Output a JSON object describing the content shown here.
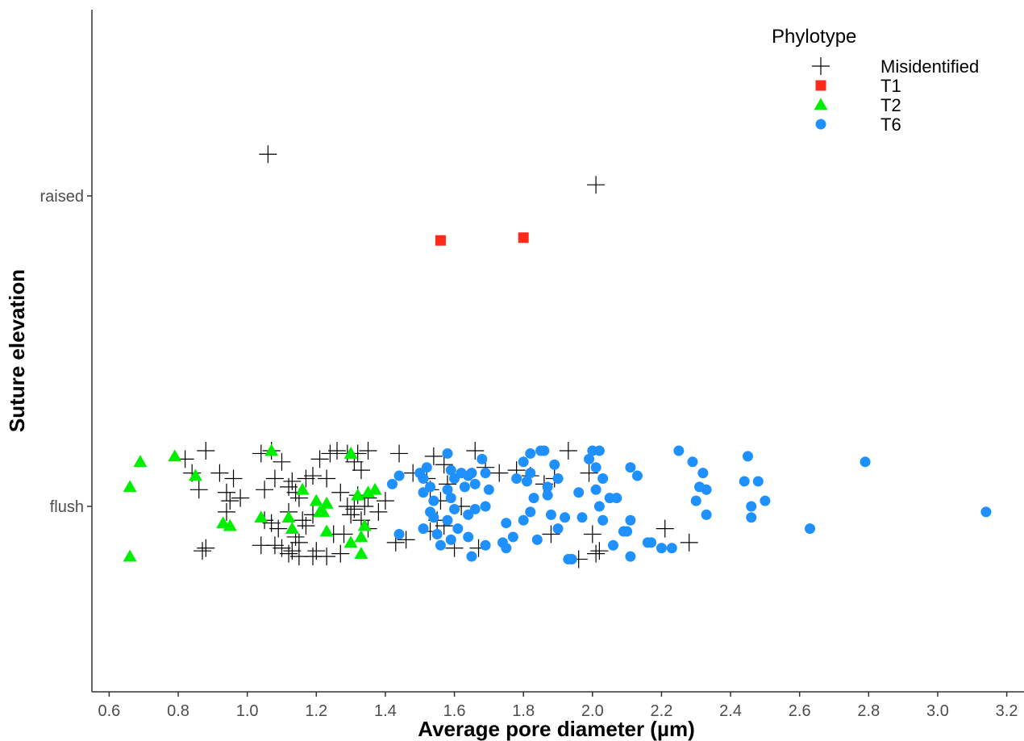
{
  "chart_data": {
    "type": "scatter",
    "xlabel": "Average pore diameter (µm)",
    "ylabel": "Suture elevation",
    "xlim": [
      0.55,
      3.25
    ],
    "x_ticks": [
      "0.6",
      "0.8",
      "1.0",
      "1.2",
      "1.4",
      "1.6",
      "1.8",
      "2.0",
      "2.2",
      "2.4",
      "2.6",
      "2.8",
      "3.0",
      "3.2"
    ],
    "y_categories": [
      "flush",
      "raised"
    ],
    "grid": false,
    "legend": {
      "title": "Phylotype",
      "position": "top-right"
    },
    "series": [
      {
        "name": "Misidentified",
        "marker": "plus",
        "color": "#000000",
        "points": [
          [
            1.06,
            "raised",
            0.15
          ],
          [
            2.01,
            "raised",
            0.04
          ],
          [
            0.82,
            "flush",
            0.17
          ],
          [
            0.88,
            "flush",
            0.2
          ],
          [
            0.84,
            "flush",
            0.12
          ],
          [
            0.86,
            "flush",
            0.06
          ],
          [
            0.87,
            "flush",
            -0.16
          ],
          [
            0.88,
            "flush",
            -0.15
          ],
          [
            0.92,
            "flush",
            0.12
          ],
          [
            0.94,
            "flush",
            0.05
          ],
          [
            0.95,
            "flush",
            0.02
          ],
          [
            0.96,
            "flush",
            0.1
          ],
          [
            0.98,
            "flush",
            0.03
          ],
          [
            0.94,
            "flush",
            -0.02
          ],
          [
            1.04,
            "flush",
            0.19
          ],
          [
            1.07,
            "flush",
            0.2
          ],
          [
            1.08,
            "flush",
            0.1
          ],
          [
            1.05,
            "flush",
            0.06
          ],
          [
            1.1,
            "flush",
            0.16
          ],
          [
            1.12,
            "flush",
            0.07
          ],
          [
            1.14,
            "flush",
            0.05
          ],
          [
            1.15,
            "flush",
            0.03
          ],
          [
            1.13,
            "flush",
            0.09
          ],
          [
            1.17,
            "flush",
            0.1
          ],
          [
            1.19,
            "flush",
            0.11
          ],
          [
            1.21,
            "flush",
            0.17
          ],
          [
            1.24,
            "flush",
            0.19
          ],
          [
            1.26,
            "flush",
            0.2
          ],
          [
            1.29,
            "flush",
            0.19
          ],
          [
            1.32,
            "flush",
            0.19
          ],
          [
            1.35,
            "flush",
            0.2
          ],
          [
            1.31,
            "flush",
            0.16
          ],
          [
            1.33,
            "flush",
            0.13
          ],
          [
            1.23,
            "flush",
            0.1
          ],
          [
            1.32,
            "flush",
            0.04
          ],
          [
            1.35,
            "flush",
            0.03
          ],
          [
            1.27,
            "flush",
            0.05
          ],
          [
            1.29,
            "flush",
            0.0
          ],
          [
            1.31,
            "flush",
            -0.01
          ],
          [
            1.34,
            "flush",
            0.0
          ],
          [
            1.3,
            "flush",
            -0.03
          ],
          [
            1.33,
            "flush",
            -0.05
          ],
          [
            1.19,
            "flush",
            -0.03
          ],
          [
            1.16,
            "flush",
            -0.05
          ],
          [
            1.12,
            "flush",
            -0.02
          ],
          [
            1.07,
            "flush",
            -0.06
          ],
          [
            1.05,
            "flush",
            -0.05
          ],
          [
            1.09,
            "flush",
            -0.08
          ],
          [
            1.17,
            "flush",
            -0.07
          ],
          [
            1.25,
            "flush",
            -0.1
          ],
          [
            1.28,
            "flush",
            -0.1
          ],
          [
            1.35,
            "flush",
            -0.08
          ],
          [
            1.08,
            "flush",
            -0.14
          ],
          [
            1.04,
            "flush",
            -0.14
          ],
          [
            1.1,
            "flush",
            -0.15
          ],
          [
            1.13,
            "flush",
            -0.16
          ],
          [
            1.15,
            "flush",
            -0.13
          ],
          [
            1.12,
            "flush",
            -0.17
          ],
          [
            1.15,
            "flush",
            -0.18
          ],
          [
            1.19,
            "flush",
            -0.18
          ],
          [
            1.23,
            "flush",
            -0.18
          ],
          [
            1.2,
            "flush",
            -0.16
          ],
          [
            1.27,
            "flush",
            -0.17
          ],
          [
            1.14,
            "flush",
            -0.11
          ],
          [
            1.4,
            "flush",
            0.02
          ],
          [
            1.38,
            "flush",
            -0.02
          ],
          [
            1.44,
            "flush",
            0.19
          ],
          [
            1.48,
            "flush",
            0.12
          ],
          [
            1.54,
            "flush",
            0.18
          ],
          [
            1.57,
            "flush",
            0.15
          ],
          [
            1.52,
            "flush",
            0.1
          ],
          [
            1.58,
            "flush",
            0.08
          ],
          [
            1.53,
            "flush",
            0.06
          ],
          [
            1.56,
            "flush",
            0.02
          ],
          [
            1.55,
            "flush",
            -0.05
          ],
          [
            1.57,
            "flush",
            -0.07
          ],
          [
            1.53,
            "flush",
            -0.09
          ],
          [
            1.6,
            "flush",
            -0.15
          ],
          [
            1.67,
            "flush",
            -0.15
          ],
          [
            1.46,
            "flush",
            -0.12
          ],
          [
            1.43,
            "flush",
            -0.13
          ],
          [
            1.62,
            "flush",
            0.0
          ],
          [
            1.66,
            "flush",
            0.2
          ],
          [
            1.69,
            "flush",
            0.14
          ],
          [
            1.73,
            "flush",
            0.12
          ],
          [
            1.78,
            "flush",
            0.13
          ],
          [
            1.82,
            "flush",
            0.11
          ],
          [
            1.86,
            "flush",
            0.08
          ],
          [
            1.89,
            "flush",
            0.1
          ],
          [
            1.93,
            "flush",
            0.2
          ],
          [
            1.88,
            "flush",
            -0.1
          ],
          [
            1.96,
            "flush",
            -0.19
          ],
          [
            2.0,
            "flush",
            -0.1
          ],
          [
            2.01,
            "flush",
            -0.17
          ],
          [
            2.02,
            "flush",
            -0.16
          ],
          [
            2.21,
            "flush",
            -0.08
          ],
          [
            2.28,
            "flush",
            -0.13
          ],
          [
            1.99,
            "flush",
            0.12
          ]
        ]
      },
      {
        "name": "T1",
        "marker": "square",
        "color": "#ff2a1a",
        "points": [
          [
            1.56,
            "raised",
            -0.16
          ],
          [
            1.8,
            "raised",
            -0.15
          ]
        ]
      },
      {
        "name": "T2",
        "marker": "triangle",
        "color": "#00ee00",
        "points": [
          [
            0.66,
            "flush",
            0.07
          ],
          [
            0.69,
            "flush",
            0.16
          ],
          [
            0.79,
            "flush",
            0.18
          ],
          [
            0.85,
            "flush",
            0.11
          ],
          [
            0.66,
            "flush",
            -0.18
          ],
          [
            0.93,
            "flush",
            -0.06
          ],
          [
            0.95,
            "flush",
            -0.07
          ],
          [
            1.04,
            "flush",
            -0.04
          ],
          [
            1.07,
            "flush",
            0.2
          ],
          [
            1.12,
            "flush",
            -0.04
          ],
          [
            1.13,
            "flush",
            -0.08
          ],
          [
            1.16,
            "flush",
            0.06
          ],
          [
            1.2,
            "flush",
            0.02
          ],
          [
            1.22,
            "flush",
            -0.02
          ],
          [
            1.23,
            "flush",
            0.01
          ],
          [
            1.23,
            "flush",
            -0.09
          ],
          [
            1.21,
            "flush",
            -0.02
          ],
          [
            1.3,
            "flush",
            0.19
          ],
          [
            1.32,
            "flush",
            0.04
          ],
          [
            1.35,
            "flush",
            0.05
          ],
          [
            1.37,
            "flush",
            0.06
          ],
          [
            1.33,
            "flush",
            -0.11
          ],
          [
            1.34,
            "flush",
            -0.07
          ],
          [
            1.3,
            "flush",
            -0.13
          ],
          [
            1.33,
            "flush",
            -0.17
          ]
        ]
      },
      {
        "name": "T6",
        "marker": "circle",
        "color": "#1e90ff",
        "points": [
          [
            1.42,
            "flush",
            0.08
          ],
          [
            1.44,
            "flush",
            0.11
          ],
          [
            1.44,
            "flush",
            -0.1
          ],
          [
            1.5,
            "flush",
            0.12
          ],
          [
            1.51,
            "flush",
            0.1
          ],
          [
            1.52,
            "flush",
            0.14
          ],
          [
            1.53,
            "flush",
            0.07
          ],
          [
            1.54,
            "flush",
            0.02
          ],
          [
            1.51,
            "flush",
            0.05
          ],
          [
            1.53,
            "flush",
            -0.02
          ],
          [
            1.54,
            "flush",
            -0.04
          ],
          [
            1.51,
            "flush",
            -0.08
          ],
          [
            1.55,
            "flush",
            -0.1
          ],
          [
            1.56,
            "flush",
            -0.14
          ],
          [
            1.58,
            "flush",
            0.19
          ],
          [
            1.59,
            "flush",
            0.13
          ],
          [
            1.6,
            "flush",
            0.1
          ],
          [
            1.58,
            "flush",
            0.06
          ],
          [
            1.59,
            "flush",
            0.03
          ],
          [
            1.6,
            "flush",
            -0.01
          ],
          [
            1.58,
            "flush",
            -0.05
          ],
          [
            1.62,
            "flush",
            0.12
          ],
          [
            1.63,
            "flush",
            0.07
          ],
          [
            1.64,
            "flush",
            0.11
          ],
          [
            1.61,
            "flush",
            -0.08
          ],
          [
            1.59,
            "flush",
            -0.12
          ],
          [
            1.65,
            "flush",
            0.12
          ],
          [
            1.66,
            "flush",
            0.08
          ],
          [
            1.64,
            "flush",
            -0.03
          ],
          [
            1.66,
            "flush",
            -0.01
          ],
          [
            1.64,
            "flush",
            -0.11
          ],
          [
            1.65,
            "flush",
            -0.18
          ],
          [
            1.68,
            "flush",
            0.17
          ],
          [
            1.69,
            "flush",
            0.12
          ],
          [
            1.7,
            "flush",
            0.06
          ],
          [
            1.69,
            "flush",
            0.0
          ],
          [
            1.69,
            "flush",
            -0.14
          ],
          [
            1.74,
            "flush",
            -0.13
          ],
          [
            1.75,
            "flush",
            -0.15
          ],
          [
            1.77,
            "flush",
            -0.11
          ],
          [
            1.75,
            "flush",
            -0.06
          ],
          [
            1.78,
            "flush",
            0.1
          ],
          [
            1.8,
            "flush",
            0.16
          ],
          [
            1.81,
            "flush",
            0.09
          ],
          [
            1.82,
            "flush",
            0.12
          ],
          [
            1.82,
            "flush",
            0.19
          ],
          [
            1.8,
            "flush",
            -0.05
          ],
          [
            1.82,
            "flush",
            -0.02
          ],
          [
            1.83,
            "flush",
            0.03
          ],
          [
            1.84,
            "flush",
            -0.12
          ],
          [
            1.85,
            "flush",
            0.2
          ],
          [
            1.86,
            "flush",
            0.2
          ],
          [
            1.87,
            "flush",
            0.07
          ],
          [
            1.88,
            "flush",
            -0.03
          ],
          [
            1.89,
            "flush",
            0.15
          ],
          [
            1.9,
            "flush",
            0.1
          ],
          [
            1.9,
            "flush",
            -0.08
          ],
          [
            1.87,
            "flush",
            0.04
          ],
          [
            1.92,
            "flush",
            -0.04
          ],
          [
            1.93,
            "flush",
            -0.19
          ],
          [
            1.94,
            "flush",
            -0.19
          ],
          [
            1.96,
            "flush",
            0.05
          ],
          [
            1.97,
            "flush",
            -0.04
          ],
          [
            1.99,
            "flush",
            0.17
          ],
          [
            2.0,
            "flush",
            0.2
          ],
          [
            2.01,
            "flush",
            0.14
          ],
          [
            2.02,
            "flush",
            0.2
          ],
          [
            2.03,
            "flush",
            0.1
          ],
          [
            2.01,
            "flush",
            0.06
          ],
          [
            2.02,
            "flush",
            0.0
          ],
          [
            2.03,
            "flush",
            -0.05
          ],
          [
            2.05,
            "flush",
            0.03
          ],
          [
            2.06,
            "flush",
            -0.14
          ],
          [
            2.07,
            "flush",
            0.03
          ],
          [
            2.09,
            "flush",
            -0.09
          ],
          [
            2.1,
            "flush",
            -0.09
          ],
          [
            2.11,
            "flush",
            -0.05
          ],
          [
            2.11,
            "flush",
            0.14
          ],
          [
            2.13,
            "flush",
            0.11
          ],
          [
            2.11,
            "flush",
            -0.18
          ],
          [
            2.17,
            "flush",
            -0.13
          ],
          [
            2.16,
            "flush",
            -0.13
          ],
          [
            2.2,
            "flush",
            -0.15
          ],
          [
            2.23,
            "flush",
            -0.15
          ],
          [
            2.25,
            "flush",
            0.2
          ],
          [
            2.29,
            "flush",
            0.16
          ],
          [
            2.3,
            "flush",
            0.02
          ],
          [
            2.31,
            "flush",
            0.07
          ],
          [
            2.32,
            "flush",
            0.12
          ],
          [
            2.33,
            "flush",
            0.06
          ],
          [
            2.33,
            "flush",
            -0.03
          ],
          [
            2.44,
            "flush",
            0.09
          ],
          [
            2.45,
            "flush",
            0.18
          ],
          [
            2.46,
            "flush",
            0.0
          ],
          [
            2.46,
            "flush",
            -0.04
          ],
          [
            2.48,
            "flush",
            0.09
          ],
          [
            2.5,
            "flush",
            0.02
          ],
          [
            2.63,
            "flush",
            -0.08
          ],
          [
            2.79,
            "flush",
            0.16
          ],
          [
            3.14,
            "flush",
            -0.02
          ]
        ]
      }
    ]
  }
}
